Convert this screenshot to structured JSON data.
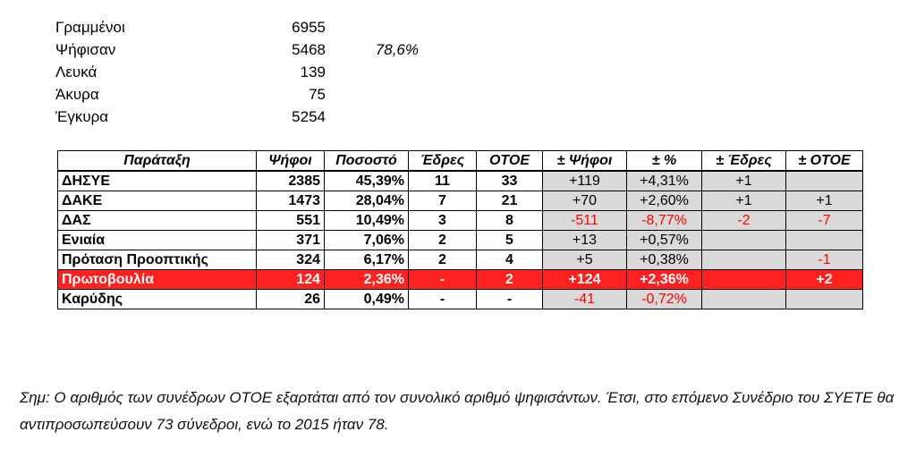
{
  "summary": {
    "rows": [
      {
        "label": "Γραμμένοι",
        "value": "6955",
        "pct": ""
      },
      {
        "label": "Ψήφισαν",
        "value": "5468",
        "pct": "78,6%"
      },
      {
        "label": "Λευκά",
        "value": "139",
        "pct": ""
      },
      {
        "label": "Άκυρα",
        "value": "75",
        "pct": ""
      },
      {
        "label": "Έγκυρα",
        "value": "5254",
        "pct": ""
      }
    ]
  },
  "table": {
    "headers": [
      "Παράταξη",
      "Ψήφοι",
      "Ποσοστό",
      "Έδρες",
      "ΟΤΟΕ",
      "± Ψήφοι",
      "± %",
      "± Έδρες",
      "± ΟΤΟΕ"
    ],
    "rows": [
      {
        "name": "ΔΗΣΥΕ",
        "votes": "2385",
        "pct": "45,39%",
        "seats": "11",
        "otoe": "33",
        "d_votes": "+119",
        "d_pct": "+4,31%",
        "d_seats": "+1",
        "d_otoe": "",
        "neg": [
          false,
          false,
          false,
          false
        ],
        "highlight": false
      },
      {
        "name": "ΔΑΚΕ",
        "votes": "1473",
        "pct": "28,04%",
        "seats": "7",
        "otoe": "21",
        "d_votes": "+70",
        "d_pct": "+2,60%",
        "d_seats": "+1",
        "d_otoe": "+1",
        "neg": [
          false,
          false,
          false,
          false
        ],
        "highlight": false
      },
      {
        "name": "ΔΑΣ",
        "votes": "551",
        "pct": "10,49%",
        "seats": "3",
        "otoe": "8",
        "d_votes": "-511",
        "d_pct": "-8,77%",
        "d_seats": "-2",
        "d_otoe": "-7",
        "neg": [
          true,
          true,
          true,
          true
        ],
        "highlight": false
      },
      {
        "name": "Ενιαία",
        "votes": "371",
        "pct": "7,06%",
        "seats": "2",
        "otoe": "5",
        "d_votes": "+13",
        "d_pct": "+0,57%",
        "d_seats": "",
        "d_otoe": "",
        "neg": [
          false,
          false,
          false,
          false
        ],
        "highlight": false
      },
      {
        "name": "Πρόταση Προοπτικής",
        "votes": "324",
        "pct": "6,17%",
        "seats": "2",
        "otoe": "4",
        "d_votes": "+5",
        "d_pct": "+0,38%",
        "d_seats": "",
        "d_otoe": "-1",
        "neg": [
          false,
          false,
          false,
          true
        ],
        "highlight": false
      },
      {
        "name": "Πρωτοβουλία",
        "votes": "124",
        "pct": "2,36%",
        "seats": "-",
        "otoe": "2",
        "d_votes": "+124",
        "d_pct": "+2,36%",
        "d_seats": "",
        "d_otoe": "+2",
        "neg": [
          false,
          false,
          false,
          false
        ],
        "highlight": true
      },
      {
        "name": "Καρύδης",
        "votes": "26",
        "pct": "0,49%",
        "seats": "-",
        "otoe": "-",
        "d_votes": "-41",
        "d_pct": "-0,72%",
        "d_seats": "",
        "d_otoe": "",
        "neg": [
          true,
          true,
          false,
          false
        ],
        "highlight": false
      }
    ]
  },
  "note": "Σημ: Ο αριθμός των συνέδρων ΟΤΟΕ εξαρτάται από τον συνολικό αριθμό ψηφισάντων. Έτσι, στο επόμενο Συνέδριο του ΣΥΕΤΕ θα αντιπροσωπεύσουν 73 σύνεδροι, ενώ το 2015 ήταν 78.",
  "colors": {
    "highlight": "#ff2020",
    "negative": "#ff0000",
    "delta_bg": "#d9d9d9"
  }
}
